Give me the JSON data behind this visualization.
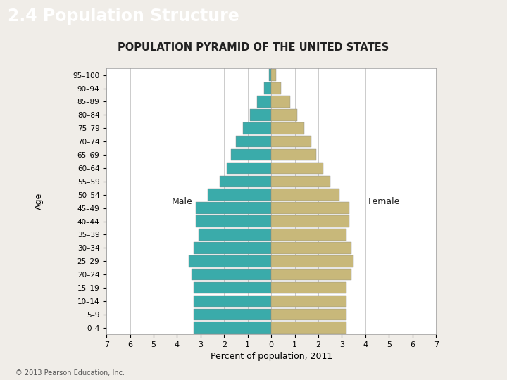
{
  "title_banner": "2.4 Population Structure",
  "title_banner_bg": "#E8681A",
  "title_banner_fg": "#FFFFFF",
  "subtitle": "POPULATION PYRAMID OF THE UNITED STATES",
  "xlabel": "Percent of population, 2011",
  "ylabel": "Age",
  "male_label": "Male",
  "female_label": "Female",
  "copyright": "© 2013 Pearson Education, Inc.",
  "age_groups": [
    "0–4",
    "5–9",
    "10–14",
    "15–19",
    "20–24",
    "25–29",
    "30–34",
    "35–39",
    "40–44",
    "45–49",
    "50–54",
    "55–59",
    "60–64",
    "65–69",
    "70–74",
    "75–79",
    "80–84",
    "85–89",
    "90–94",
    "95–100"
  ],
  "male_values": [
    3.3,
    3.3,
    3.3,
    3.3,
    3.4,
    3.5,
    3.3,
    3.1,
    3.2,
    3.2,
    2.7,
    2.2,
    1.9,
    1.7,
    1.5,
    1.2,
    0.9,
    0.6,
    0.3,
    0.1
  ],
  "female_values": [
    3.2,
    3.2,
    3.2,
    3.2,
    3.4,
    3.5,
    3.4,
    3.2,
    3.3,
    3.3,
    2.9,
    2.5,
    2.2,
    1.9,
    1.7,
    1.4,
    1.1,
    0.8,
    0.4,
    0.2
  ],
  "male_color": "#3AABAA",
  "female_color": "#C8B87A",
  "bg_color": "#F0EDE8",
  "plot_bg": "#FFFFFF",
  "grid_color": "#AAAAAA",
  "xlim": 7,
  "bar_height": 0.88
}
